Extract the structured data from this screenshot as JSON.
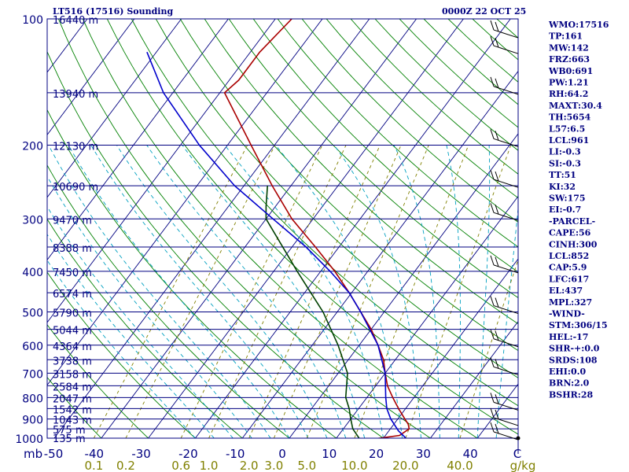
{
  "header": {
    "station_title": "LT516 (17516) Sounding",
    "time": "0000Z 22 OCT 25"
  },
  "side_panel": {
    "lines": [
      "WMO:17516",
      "TP:161",
      "MW:142",
      "FRZ:663",
      "WB0:691",
      "PW:1.21",
      "RH:64.2",
      "MAXT:30.4",
      "TH:5654",
      "L57:6.5",
      "LCL:961",
      "LI:-0.3",
      "SI:-0.3",
      "TT:51",
      "KI:32",
      "SW:175",
      "EI:-0.7",
      "-PARCEL-",
      "CAPE:56",
      "CINH:300",
      "LCL:852",
      "CAP:5.9",
      "LFC:617",
      "EL:437",
      "MPL:327",
      "-WIND-",
      "STM:306/15",
      "HEL:-17",
      "SHR-+:0.0",
      "SRDS:108",
      "EHI:0.0",
      "BRN:2.0",
      "BSHR:28"
    ]
  },
  "colors": {
    "isobar": "#000080",
    "isotherm": "#000080",
    "dry_adiabat": "#008000",
    "moist_adiabat": "#00a0c0",
    "mixing_ratio": "#808000",
    "temperature": "#aa0000",
    "dewpoint": "#004000",
    "parcel": "#0000cc",
    "wind": "#000000",
    "frame": "#000080"
  },
  "chart_data": {
    "type": "line",
    "title": "LT516 (17516) Sounding",
    "diagram": "skew-T log-P",
    "pressure_label": "mb",
    "mixing_ratio_unit": "g/kg",
    "pressure_levels": [
      {
        "p": 100,
        "label": "100",
        "height": "16440 m"
      },
      {
        "p": 150,
        "height": "13940 m"
      },
      {
        "p": 200,
        "label": "200",
        "height": "12130 m"
      },
      {
        "p": 250,
        "height": "10690 m"
      },
      {
        "p": 300,
        "label": "300",
        "height": "9470 m"
      },
      {
        "p": 350,
        "height": "8388 m"
      },
      {
        "p": 400,
        "label": "400",
        "height": "7450 m"
      },
      {
        "p": 450,
        "height": "6574 m"
      },
      {
        "p": 500,
        "label": "500",
        "height": "5790 m"
      },
      {
        "p": 550,
        "height": "5044 m"
      },
      {
        "p": 600,
        "label": "600",
        "height": "4364 m"
      },
      {
        "p": 650,
        "height": "3738 m"
      },
      {
        "p": 700,
        "label": "700",
        "height": "3158 m"
      },
      {
        "p": 750,
        "height": "2584 m"
      },
      {
        "p": 800,
        "label": "800",
        "height": "2047 m"
      },
      {
        "p": 850,
        "height": "1542 m"
      },
      {
        "p": 900,
        "label": "900",
        "height": "1043 m"
      },
      {
        "p": 950,
        "height": "575 m"
      },
      {
        "p": 1000,
        "label": "1000",
        "height": "135 m"
      }
    ],
    "temperature_ticks": [
      {
        "t": -50,
        "label": "-50"
      },
      {
        "t": -40,
        "label": "-40"
      },
      {
        "t": -30,
        "label": "-30"
      },
      {
        "t": -20,
        "label": "-20"
      },
      {
        "t": -10,
        "label": "-10"
      },
      {
        "t": 0,
        "label": "0"
      },
      {
        "t": 10,
        "label": "10"
      },
      {
        "t": 20,
        "label": "20"
      },
      {
        "t": 30,
        "label": "30"
      },
      {
        "t": 40,
        "label": "40"
      },
      {
        "t": 50,
        "label": "C"
      }
    ],
    "mixing_ratio_ticks": [
      {
        "w": 0.1,
        "label": "0.1"
      },
      {
        "w": 0.2,
        "label": "0.2"
      },
      {
        "w": 0.6,
        "label": "0.6"
      },
      {
        "w": 1.0,
        "label": "1.0"
      },
      {
        "w": 2.0,
        "label": "2.0"
      },
      {
        "w": 3.0,
        "label": "3.0"
      },
      {
        "w": 5.0,
        "label": "5.0"
      },
      {
        "w": 10.0,
        "label": "10.0"
      },
      {
        "w": 20.0,
        "label": "20.0"
      },
      {
        "w": 40.0,
        "label": "40.0"
      }
    ],
    "series": [
      {
        "name": "temperature",
        "points": [
          [
            1003,
            18.5
          ],
          [
            985,
            23.0
          ],
          [
            950,
            24.0
          ],
          [
            925,
            23.0
          ],
          [
            900,
            21.5
          ],
          [
            850,
            18.5
          ],
          [
            800,
            15.5
          ],
          [
            750,
            12.5
          ],
          [
            700,
            10.0
          ],
          [
            650,
            7.5
          ],
          [
            600,
            4.0
          ],
          [
            550,
            0.0
          ],
          [
            500,
            -5.0
          ],
          [
            450,
            -10.5
          ],
          [
            400,
            -17.0
          ],
          [
            350,
            -25.0
          ],
          [
            300,
            -34.5
          ],
          [
            250,
            -44.0
          ],
          [
            200,
            -55.0
          ],
          [
            150,
            -69.0
          ],
          [
            140,
            -68.0
          ],
          [
            120,
            -68.0
          ],
          [
            100,
            -66.5
          ]
        ]
      },
      {
        "name": "dewpoint",
        "points": [
          [
            1003,
            15.0
          ],
          [
            950,
            12.0
          ],
          [
            900,
            10.0
          ],
          [
            850,
            8.0
          ],
          [
            800,
            5.5
          ],
          [
            700,
            2.0
          ],
          [
            600,
            -4.5
          ],
          [
            500,
            -13.0
          ],
          [
            400,
            -25.0
          ],
          [
            300,
            -40.0
          ],
          [
            280,
            -42.0
          ],
          [
            250,
            -45.0
          ]
        ]
      },
      {
        "name": "parcel",
        "points": [
          [
            1003,
            25.0
          ],
          [
            960,
            22.0
          ],
          [
            900,
            18.5
          ],
          [
            850,
            16.0
          ],
          [
            800,
            14.0
          ],
          [
            700,
            10.0
          ],
          [
            600,
            4.0
          ],
          [
            500,
            -5.0
          ],
          [
            450,
            -10.5
          ],
          [
            400,
            -18.0
          ],
          [
            350,
            -27.0
          ],
          [
            300,
            -38.5
          ],
          [
            250,
            -52.0
          ],
          [
            200,
            -66.0
          ],
          [
            150,
            -82.0
          ],
          [
            120,
            -92.0
          ]
        ]
      }
    ],
    "wind_barbs_hpa": [
      1000,
      925,
      850,
      700,
      600,
      500,
      400,
      300,
      250,
      200,
      150,
      120,
      110
    ]
  }
}
